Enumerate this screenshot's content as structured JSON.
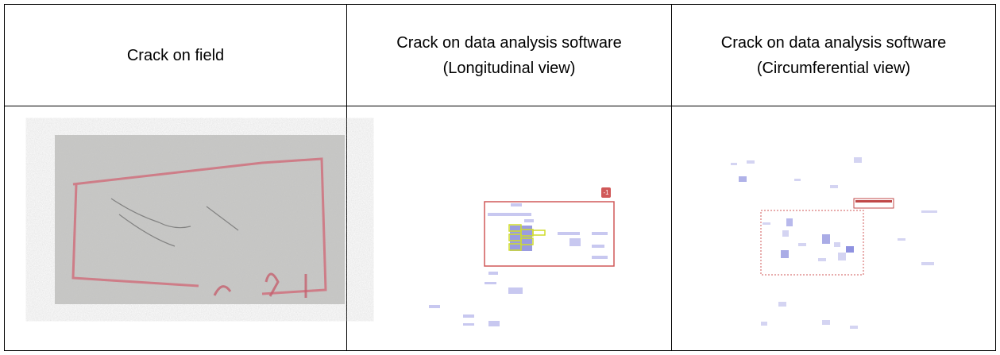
{
  "table": {
    "headers": [
      "Crack on field",
      "Crack on data analysis software (Longitudinal view)",
      "Crack on data analysis software (Circumferential view)"
    ],
    "longitudinal_marker": "-1"
  }
}
